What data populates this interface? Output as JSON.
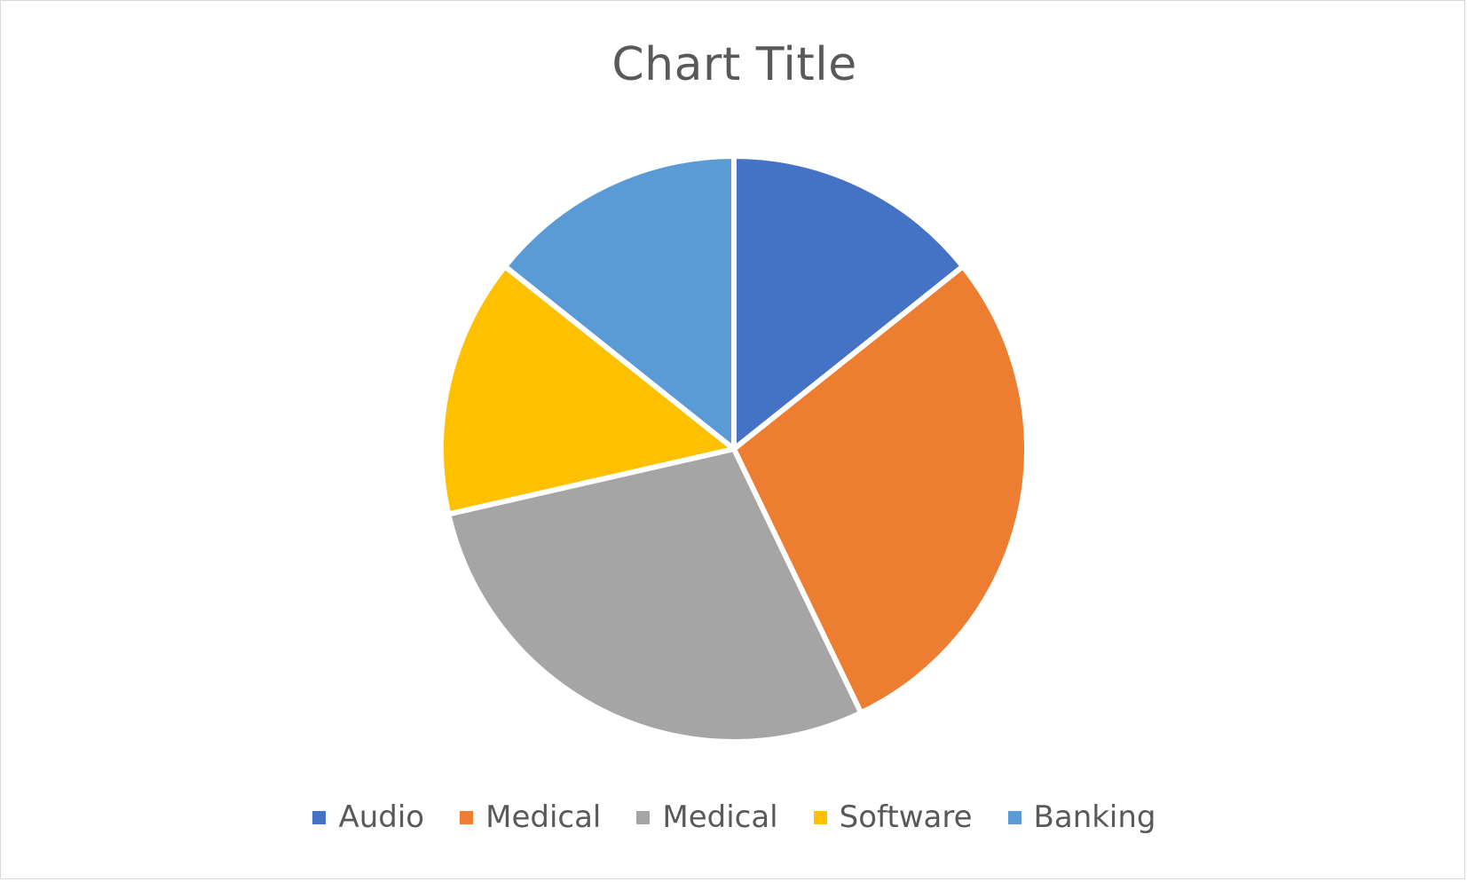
{
  "chart_data": {
    "type": "pie",
    "title": "Chart Title",
    "categories": [
      "Audio",
      "Medical",
      "Medical",
      "Software",
      "Banking"
    ],
    "values": [
      1,
      2,
      2,
      1,
      1
    ],
    "colors": [
      "#4472C4",
      "#ED7D31",
      "#A5A5A5",
      "#FFC000",
      "#5B9BD5"
    ],
    "legend_position": "bottom",
    "start_angle": "12 o'clock",
    "direction": "clockwise"
  },
  "legend": {
    "items": [
      {
        "label": "Audio",
        "color": "#4472C4"
      },
      {
        "label": "Medical",
        "color": "#ED7D31"
      },
      {
        "label": "Medical",
        "color": "#A5A5A5"
      },
      {
        "label": "Software",
        "color": "#FFC000"
      },
      {
        "label": "Banking",
        "color": "#5B9BD5"
      }
    ]
  }
}
